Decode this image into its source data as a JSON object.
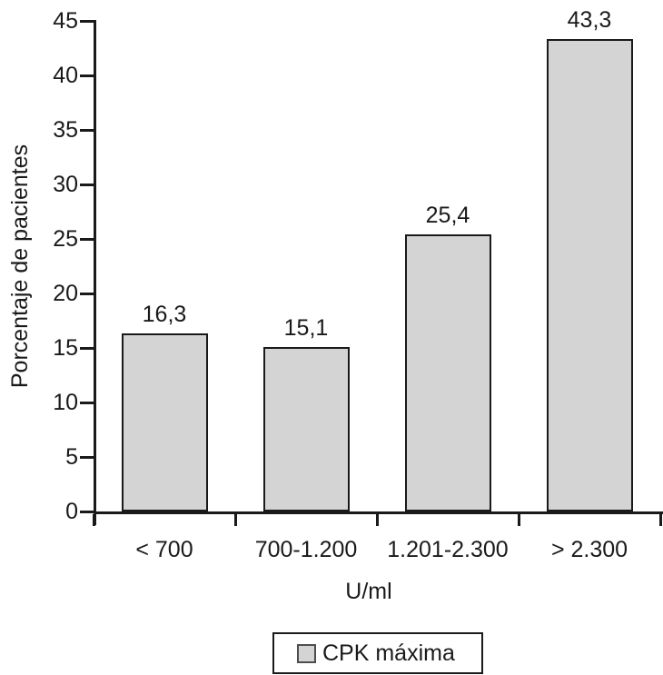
{
  "chart_data": {
    "type": "bar",
    "title": "",
    "categories": [
      "< 700",
      "700-1.200",
      "1.201-2.300",
      "> 2.300"
    ],
    "values": [
      16.3,
      15.1,
      25.4,
      43.3
    ],
    "value_labels": [
      "16,3",
      "15,1",
      "25,4",
      "43,3"
    ],
    "xlabel": "U/ml",
    "ylabel": "Porcentaje de pacientes",
    "legend": [
      {
        "label": "CPK máxima",
        "swatch_color": "#d4d4d4"
      }
    ],
    "legend_position": "bottom",
    "ylim": [
      0,
      45
    ],
    "ytick_step": 5,
    "y_ticks": [
      0,
      5,
      10,
      15,
      20,
      25,
      30,
      35,
      40,
      45
    ],
    "grid": false,
    "bar_color": "#d4d4d4",
    "bar_border_color": "#1a1a1a",
    "axis_color": "#1a1a1a",
    "text_color": "#1a1a1a",
    "background_color": "#ffffff",
    "decimal_separator": ","
  }
}
